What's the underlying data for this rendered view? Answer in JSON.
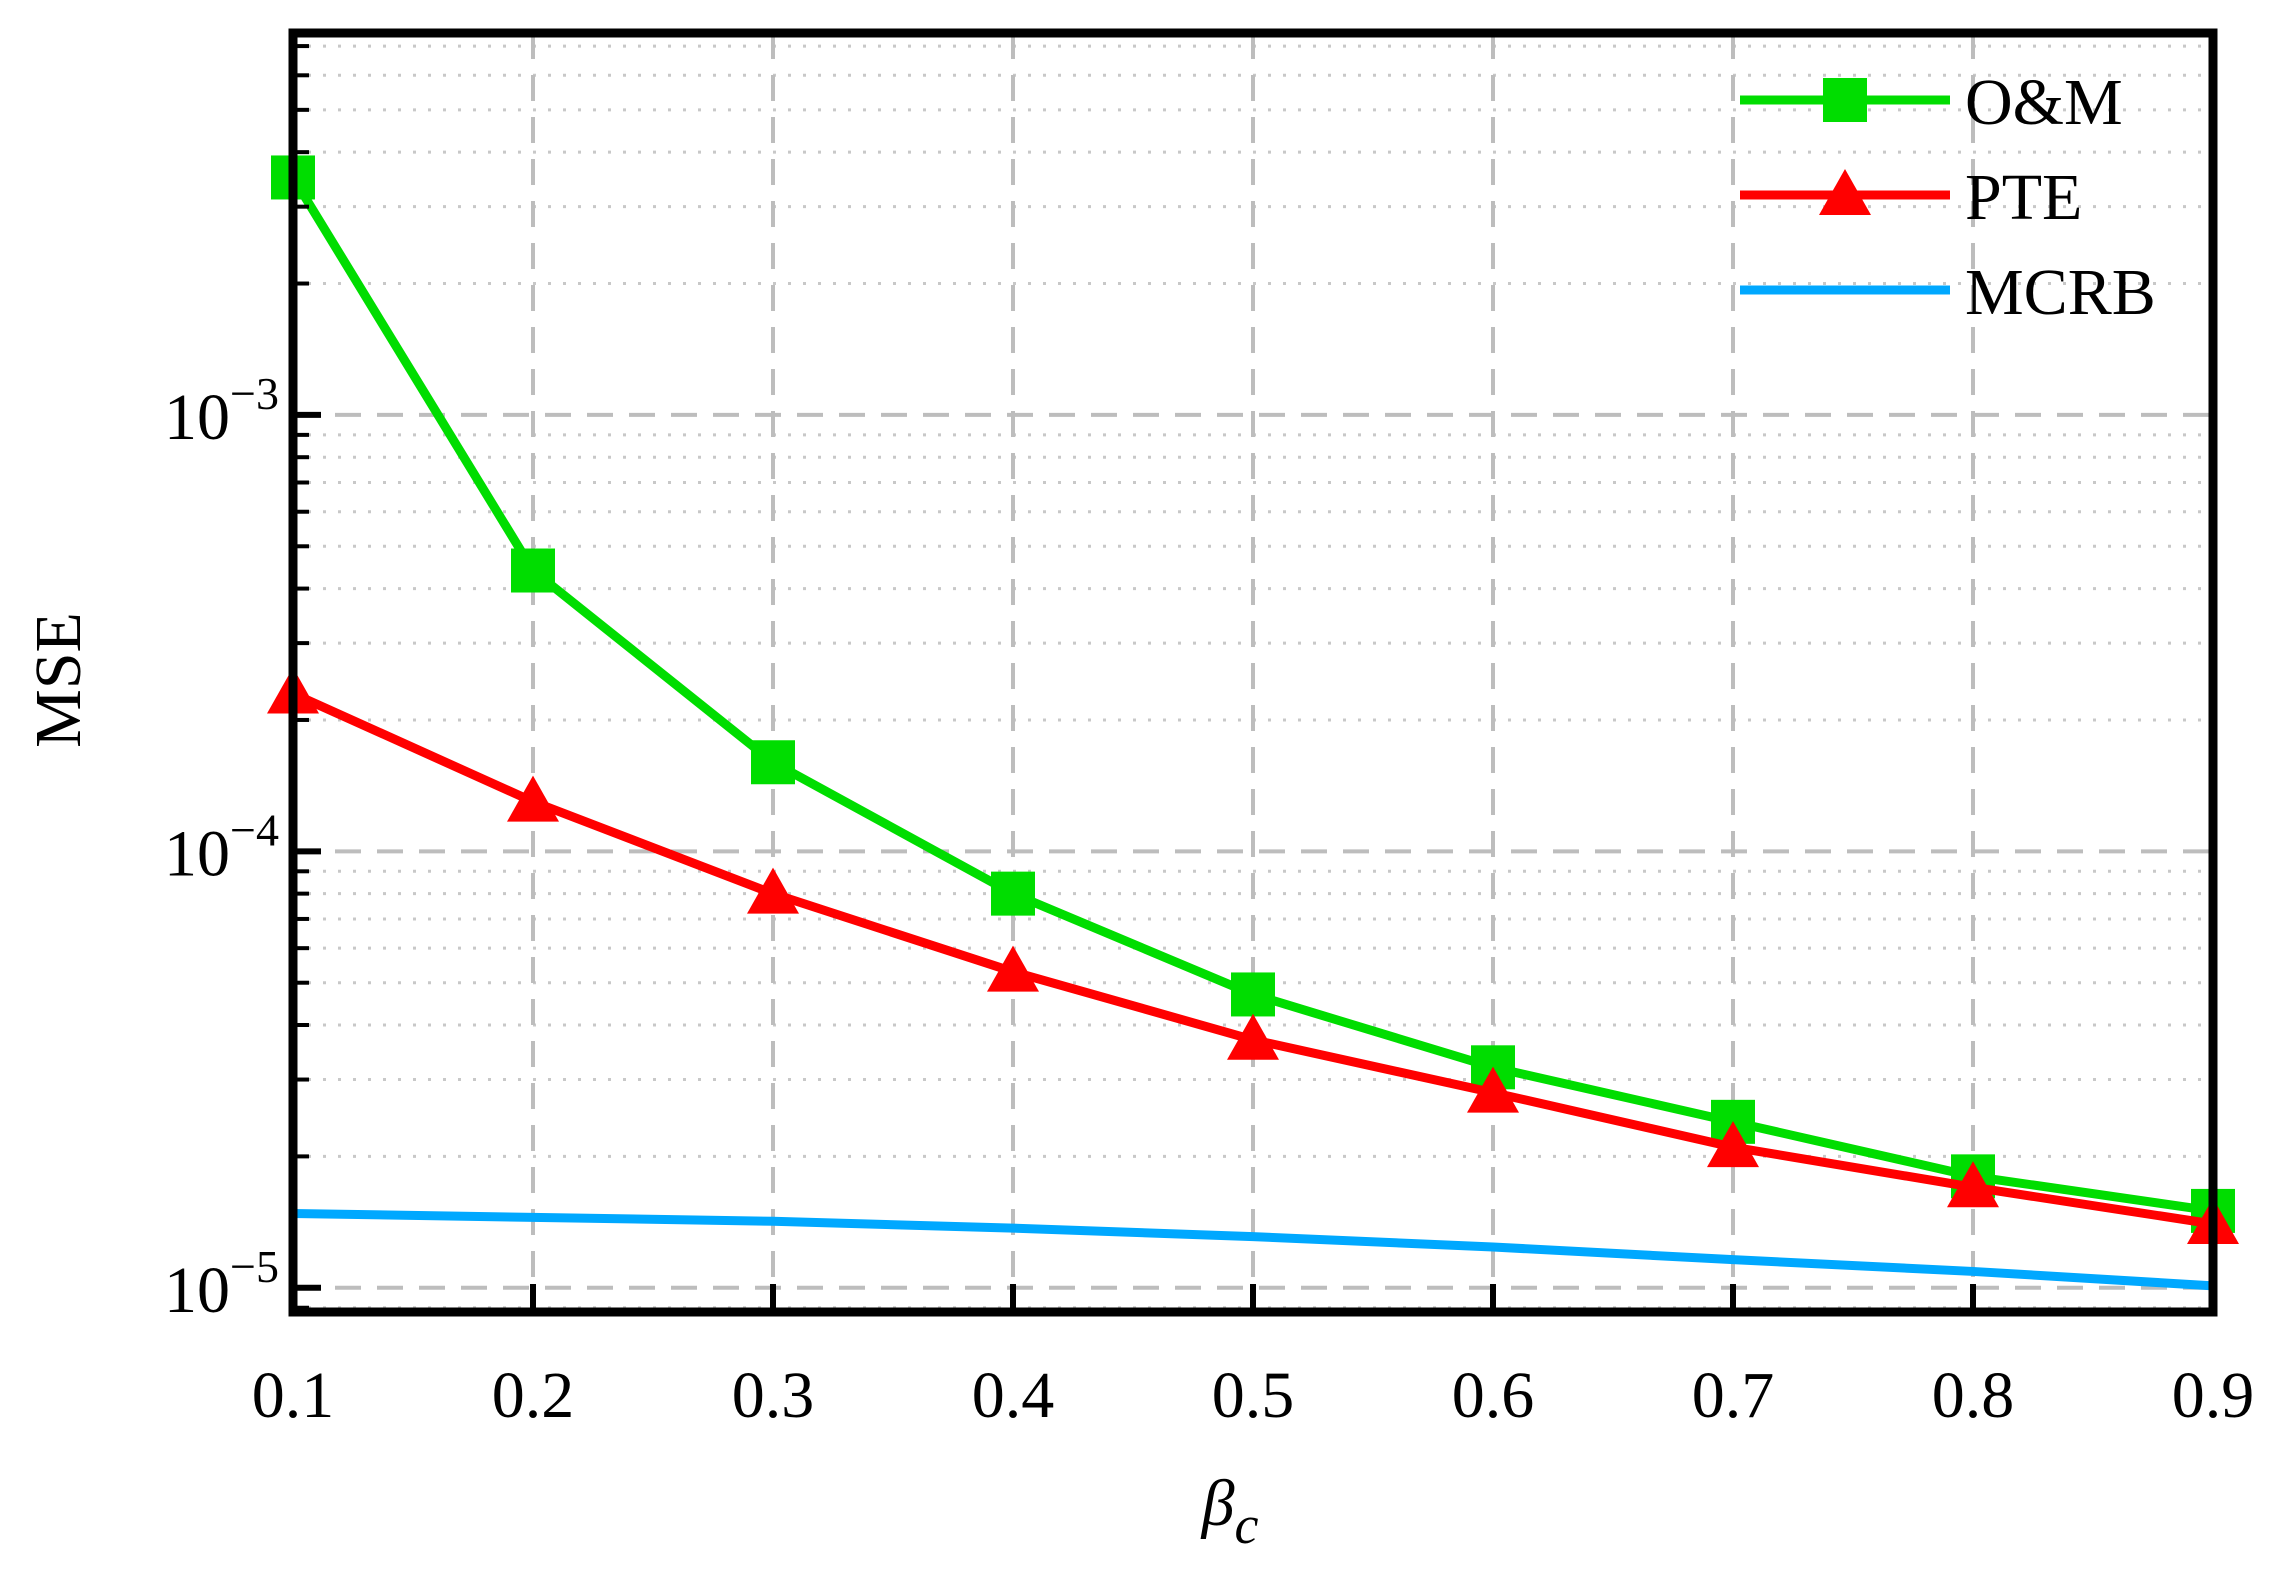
{
  "chart_data": {
    "type": "line",
    "title": "",
    "xlabel": "β",
    "xlabel_subscript": "c",
    "ylabel": "MSE",
    "xlim": [
      0.1,
      0.9
    ],
    "ylim": [
      8.8e-06,
      0.0075
    ],
    "yscale": "log",
    "grid": true,
    "legend": "top-right",
    "x": [
      0.1,
      0.2,
      0.3,
      0.4,
      0.5,
      0.6,
      0.7,
      0.8,
      0.9
    ],
    "x_ticks": [
      {
        "value": 0.1,
        "label": "0.1"
      },
      {
        "value": 0.2,
        "label": "0.2"
      },
      {
        "value": 0.3,
        "label": "0.3"
      },
      {
        "value": 0.4,
        "label": "0.4"
      },
      {
        "value": 0.5,
        "label": "0.5"
      },
      {
        "value": 0.6,
        "label": "0.6"
      },
      {
        "value": 0.7,
        "label": "0.7"
      },
      {
        "value": 0.8,
        "label": "0.8"
      },
      {
        "value": 0.9,
        "label": "0.9"
      }
    ],
    "y_ticks": [
      {
        "value": 1e-05,
        "base": "10",
        "exp": "−5"
      },
      {
        "value": 0.0001,
        "base": "10",
        "exp": "−4"
      },
      {
        "value": 0.001,
        "base": "10",
        "exp": "−3"
      }
    ],
    "series": [
      {
        "name": "O&M",
        "color": "#00dd00",
        "marker": "square",
        "values": [
          0.0035,
          0.00044,
          0.00016,
          8e-05,
          4.7e-05,
          3.2e-05,
          2.4e-05,
          1.8e-05,
          1.5e-05
        ]
      },
      {
        "name": "PTE",
        "color": "#ff0000",
        "marker": "triangle",
        "values": [
          0.00023,
          0.00013,
          8e-05,
          5.3e-05,
          3.7e-05,
          2.8e-05,
          2.1e-05,
          1.7e-05,
          1.4e-05
        ]
      },
      {
        "name": "MCRB",
        "color": "#00a8ff",
        "marker": "none",
        "values": [
          1.48e-05,
          1.45e-05,
          1.42e-05,
          1.37e-05,
          1.31e-05,
          1.24e-05,
          1.16e-05,
          1.09e-05,
          1.01e-05
        ]
      }
    ]
  }
}
